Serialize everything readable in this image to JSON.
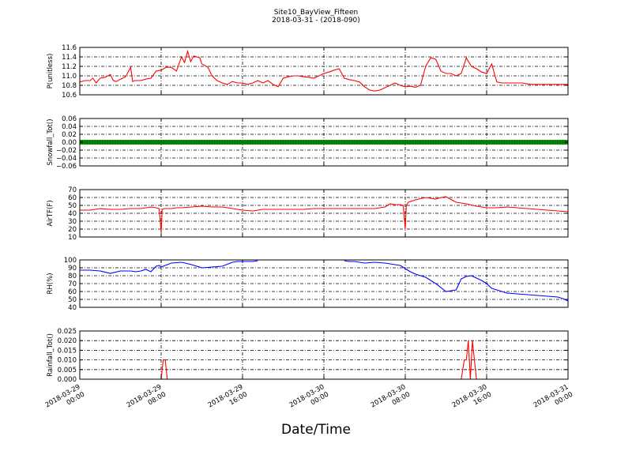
{
  "figure": {
    "title": "Site10_BayView_Fifteen",
    "subtitle": "2018-03-31 - (2018-090)",
    "xlabel": "Date/Time"
  },
  "chart_data": [
    {
      "type": "line",
      "ylabel": "P(unitless)",
      "ylim": [
        10.6,
        11.6
      ],
      "yticks": [
        "10.6",
        "10.8",
        "11.0",
        "11.2",
        "11.4",
        "11.6"
      ],
      "xlim": [
        0,
        48
      ],
      "xticks": [
        "2018-03-29 00:00",
        "2018-03-29 08:00",
        "2018-03-29 16:00",
        "2018-03-30 00:00",
        "2018-03-30 08:00",
        "2018-03-30 16:00",
        "2018-03-31 00:00"
      ],
      "grid": true,
      "series": [
        {
          "color": "#ff0000",
          "x": [
            0,
            0.5,
            1,
            1.3,
            1.6,
            2,
            2.5,
            3,
            3.3,
            3.6,
            4,
            4.5,
            5,
            5.2,
            5.4,
            5.7,
            6,
            6.5,
            7,
            7.5,
            8,
            8.5,
            9,
            9.5,
            10,
            10.3,
            10.6,
            10.9,
            11.2,
            11.5,
            11.8,
            12,
            12.3,
            12.6,
            13,
            13.5,
            14,
            14.5,
            15,
            15.5,
            16,
            16.5,
            17,
            17.5,
            18,
            18.5,
            19,
            19.5,
            20,
            20.5,
            21,
            21.5,
            22,
            22.5,
            23,
            23.5,
            24,
            24.5,
            25,
            25.5,
            26,
            26.5,
            27,
            27.5,
            28,
            28.5,
            29,
            29.5,
            30,
            30.5,
            31,
            31.5,
            32,
            32.5,
            33,
            33.5,
            34,
            34.5,
            35,
            35.5,
            36,
            36.5,
            37,
            37.5,
            38,
            38.5,
            39,
            39.5,
            40,
            40.5,
            41,
            41.5,
            42,
            42.5,
            43,
            43.5,
            44,
            44.5,
            45,
            45.5,
            46,
            46.5,
            47,
            47.5,
            48
          ],
          "y": [
            10.87,
            10.9,
            10.9,
            10.95,
            10.85,
            10.95,
            10.97,
            11.03,
            10.9,
            10.88,
            10.93,
            10.98,
            11.18,
            10.88,
            10.9,
            10.9,
            10.9,
            10.93,
            10.95,
            11.1,
            11.12,
            11.18,
            11.18,
            11.1,
            11.4,
            11.28,
            11.52,
            11.3,
            11.42,
            11.4,
            11.38,
            11.25,
            11.22,
            11.18,
            11.0,
            10.9,
            10.85,
            10.82,
            10.88,
            10.85,
            10.85,
            10.82,
            10.85,
            10.9,
            10.85,
            10.9,
            10.82,
            10.77,
            10.95,
            10.98,
            11.0,
            11.0,
            10.98,
            10.97,
            10.95,
            11.0,
            11.05,
            11.08,
            11.12,
            11.15,
            10.95,
            10.92,
            10.9,
            10.87,
            10.77,
            10.7,
            10.68,
            10.7,
            10.75,
            10.8,
            10.85,
            10.8,
            10.77,
            10.78,
            10.76,
            10.8,
            11.2,
            11.38,
            11.35,
            11.1,
            11.05,
            11.05,
            11.0,
            11.05,
            11.38,
            11.2,
            11.15,
            11.08,
            11.05,
            11.25,
            10.87,
            10.85,
            10.85,
            10.85,
            10.85,
            10.85,
            10.83,
            10.82,
            10.82,
            10.82,
            10.82,
            10.82,
            10.82,
            10.82,
            10.82
          ]
        }
      ]
    },
    {
      "type": "scatter",
      "ylabel": "Snowfall_Tot()",
      "ylim": [
        -0.06,
        0.06
      ],
      "yticks": [
        "−0.06",
        "−0.04",
        "−0.02",
        "0.00",
        "0.02",
        "0.04",
        "0.06"
      ],
      "xlim": [
        0,
        48
      ],
      "grid": true,
      "series": [
        {
          "color": "#008000",
          "constant_value": 0.0,
          "interval": 0.25
        }
      ]
    },
    {
      "type": "line",
      "ylabel": "AirTF(F)",
      "ylim": [
        10,
        70
      ],
      "yticks": [
        "10",
        "20",
        "30",
        "40",
        "50",
        "60",
        "70"
      ],
      "xlim": [
        0,
        48
      ],
      "grid": true,
      "series": [
        {
          "color": "#ff0000",
          "x": [
            0,
            1,
            2,
            3,
            4,
            5,
            6,
            7,
            7.5,
            7.8,
            8,
            8.1,
            8.3,
            9,
            9.5,
            10,
            11,
            12,
            13,
            14,
            15,
            16,
            17,
            18,
            19,
            20,
            21,
            22,
            23,
            24,
            25,
            26,
            27,
            28,
            29,
            30,
            30.5,
            31,
            31.5,
            31.8,
            32,
            32.1,
            32.3,
            33,
            34,
            35,
            35.5,
            36,
            37,
            38,
            39,
            40,
            41,
            42,
            43,
            44,
            45,
            46,
            47,
            48
          ],
          "y": [
            44,
            44,
            46,
            45,
            45,
            46,
            46,
            48,
            47,
            46,
            16,
            45,
            46,
            46,
            47,
            47,
            48,
            49,
            48,
            48,
            46,
            44,
            43,
            45,
            45,
            45,
            45,
            45,
            46,
            46,
            46,
            46,
            46,
            46,
            46,
            48,
            52,
            51,
            51,
            50,
            20,
            50,
            54,
            57,
            60,
            58,
            60,
            61,
            54,
            52,
            49,
            47,
            47,
            48,
            47,
            46,
            45,
            44,
            43,
            42
          ]
        }
      ]
    },
    {
      "type": "line",
      "ylabel": "RH(%)",
      "ylim": [
        40,
        100
      ],
      "yticks": [
        "40",
        "50",
        "60",
        "70",
        "80",
        "90",
        "100"
      ],
      "xlim": [
        0,
        48
      ],
      "grid": true,
      "series": [
        {
          "color": "#0000ff",
          "x": [
            0,
            1,
            2,
            3,
            4,
            5,
            5.5,
            6,
            6.5,
            7,
            7.5,
            7.8,
            8,
            9,
            10,
            11,
            12,
            13,
            14,
            15,
            15.5,
            16,
            17,
            17.5,
            26,
            26.5,
            27,
            28,
            29,
            30,
            30.5,
            31,
            31.5,
            32,
            32.5,
            33,
            34,
            35,
            36,
            36.5,
            37,
            37.5,
            38,
            38.5,
            39,
            39.5,
            40,
            40.5,
            41,
            41.5,
            42,
            43,
            44,
            45,
            46,
            47,
            47.5,
            48
          ],
          "y": [
            87,
            87,
            86,
            83,
            86,
            86,
            85,
            86,
            88,
            85,
            92,
            93,
            91,
            96,
            97,
            94,
            90,
            91,
            92,
            97,
            98,
            98,
            98,
            99,
            99,
            98,
            98,
            96,
            97,
            96,
            95,
            94,
            93,
            89,
            85,
            82,
            78,
            70,
            60,
            61,
            62,
            76,
            79,
            80,
            77,
            74,
            70,
            64,
            62,
            60,
            58,
            57,
            56,
            55,
            54,
            53,
            51,
            48
          ]
        }
      ]
    },
    {
      "type": "line",
      "ylabel": "Rainfall_Tot()",
      "ylim": [
        0.0,
        0.025
      ],
      "yticks": [
        "0.000",
        "0.005",
        "0.010",
        "0.015",
        "0.020",
        "0.025"
      ],
      "xlim": [
        0,
        48
      ],
      "grid": true,
      "series": [
        {
          "color": "#ff0000",
          "x": [
            0,
            7.8,
            8,
            8.2,
            8.4,
            8.6,
            8.8,
            9,
            37.5,
            37.8,
            38,
            38.2,
            38.4,
            38.6,
            38.8,
            39,
            48
          ],
          "y": [
            0,
            0,
            0,
            0.01,
            0.01,
            0,
            0,
            0,
            0,
            0.01,
            0.01,
            0.02,
            0,
            0.02,
            0.01,
            0,
            0
          ]
        }
      ]
    }
  ]
}
